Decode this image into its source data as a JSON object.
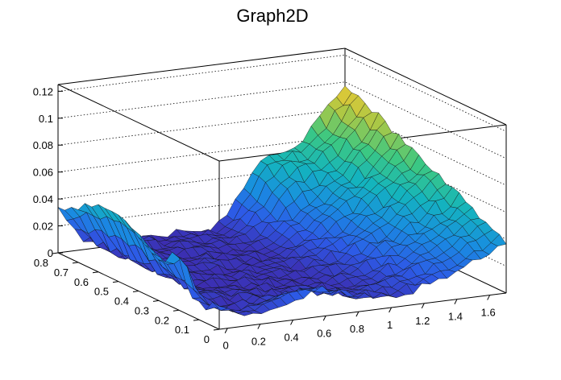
{
  "chart_data": {
    "type": "surface",
    "title": "Graph2D",
    "x_ticks": [
      "0",
      "0.2",
      "0.4",
      "0.6",
      "0.8",
      "1",
      "1.2",
      "1.4",
      "1.6"
    ],
    "y_ticks": [
      "0",
      "0.1",
      "0.2",
      "0.3",
      "0.4",
      "0.5",
      "0.6",
      "0.7",
      "0.8"
    ],
    "z_ticks": [
      "0",
      "0.02",
      "0.04",
      "0.06",
      "0.08",
      "0.1",
      "0.12"
    ],
    "xlim": [
      -0.05,
      1.7
    ],
    "ylim": [
      0,
      0.8
    ],
    "zlim": [
      0,
      0.125
    ],
    "grid": true,
    "colormap": "parula",
    "colors": {
      "low": "#3a4ec8",
      "mid": "#21b5a8",
      "high": "#f5e62a"
    }
  }
}
